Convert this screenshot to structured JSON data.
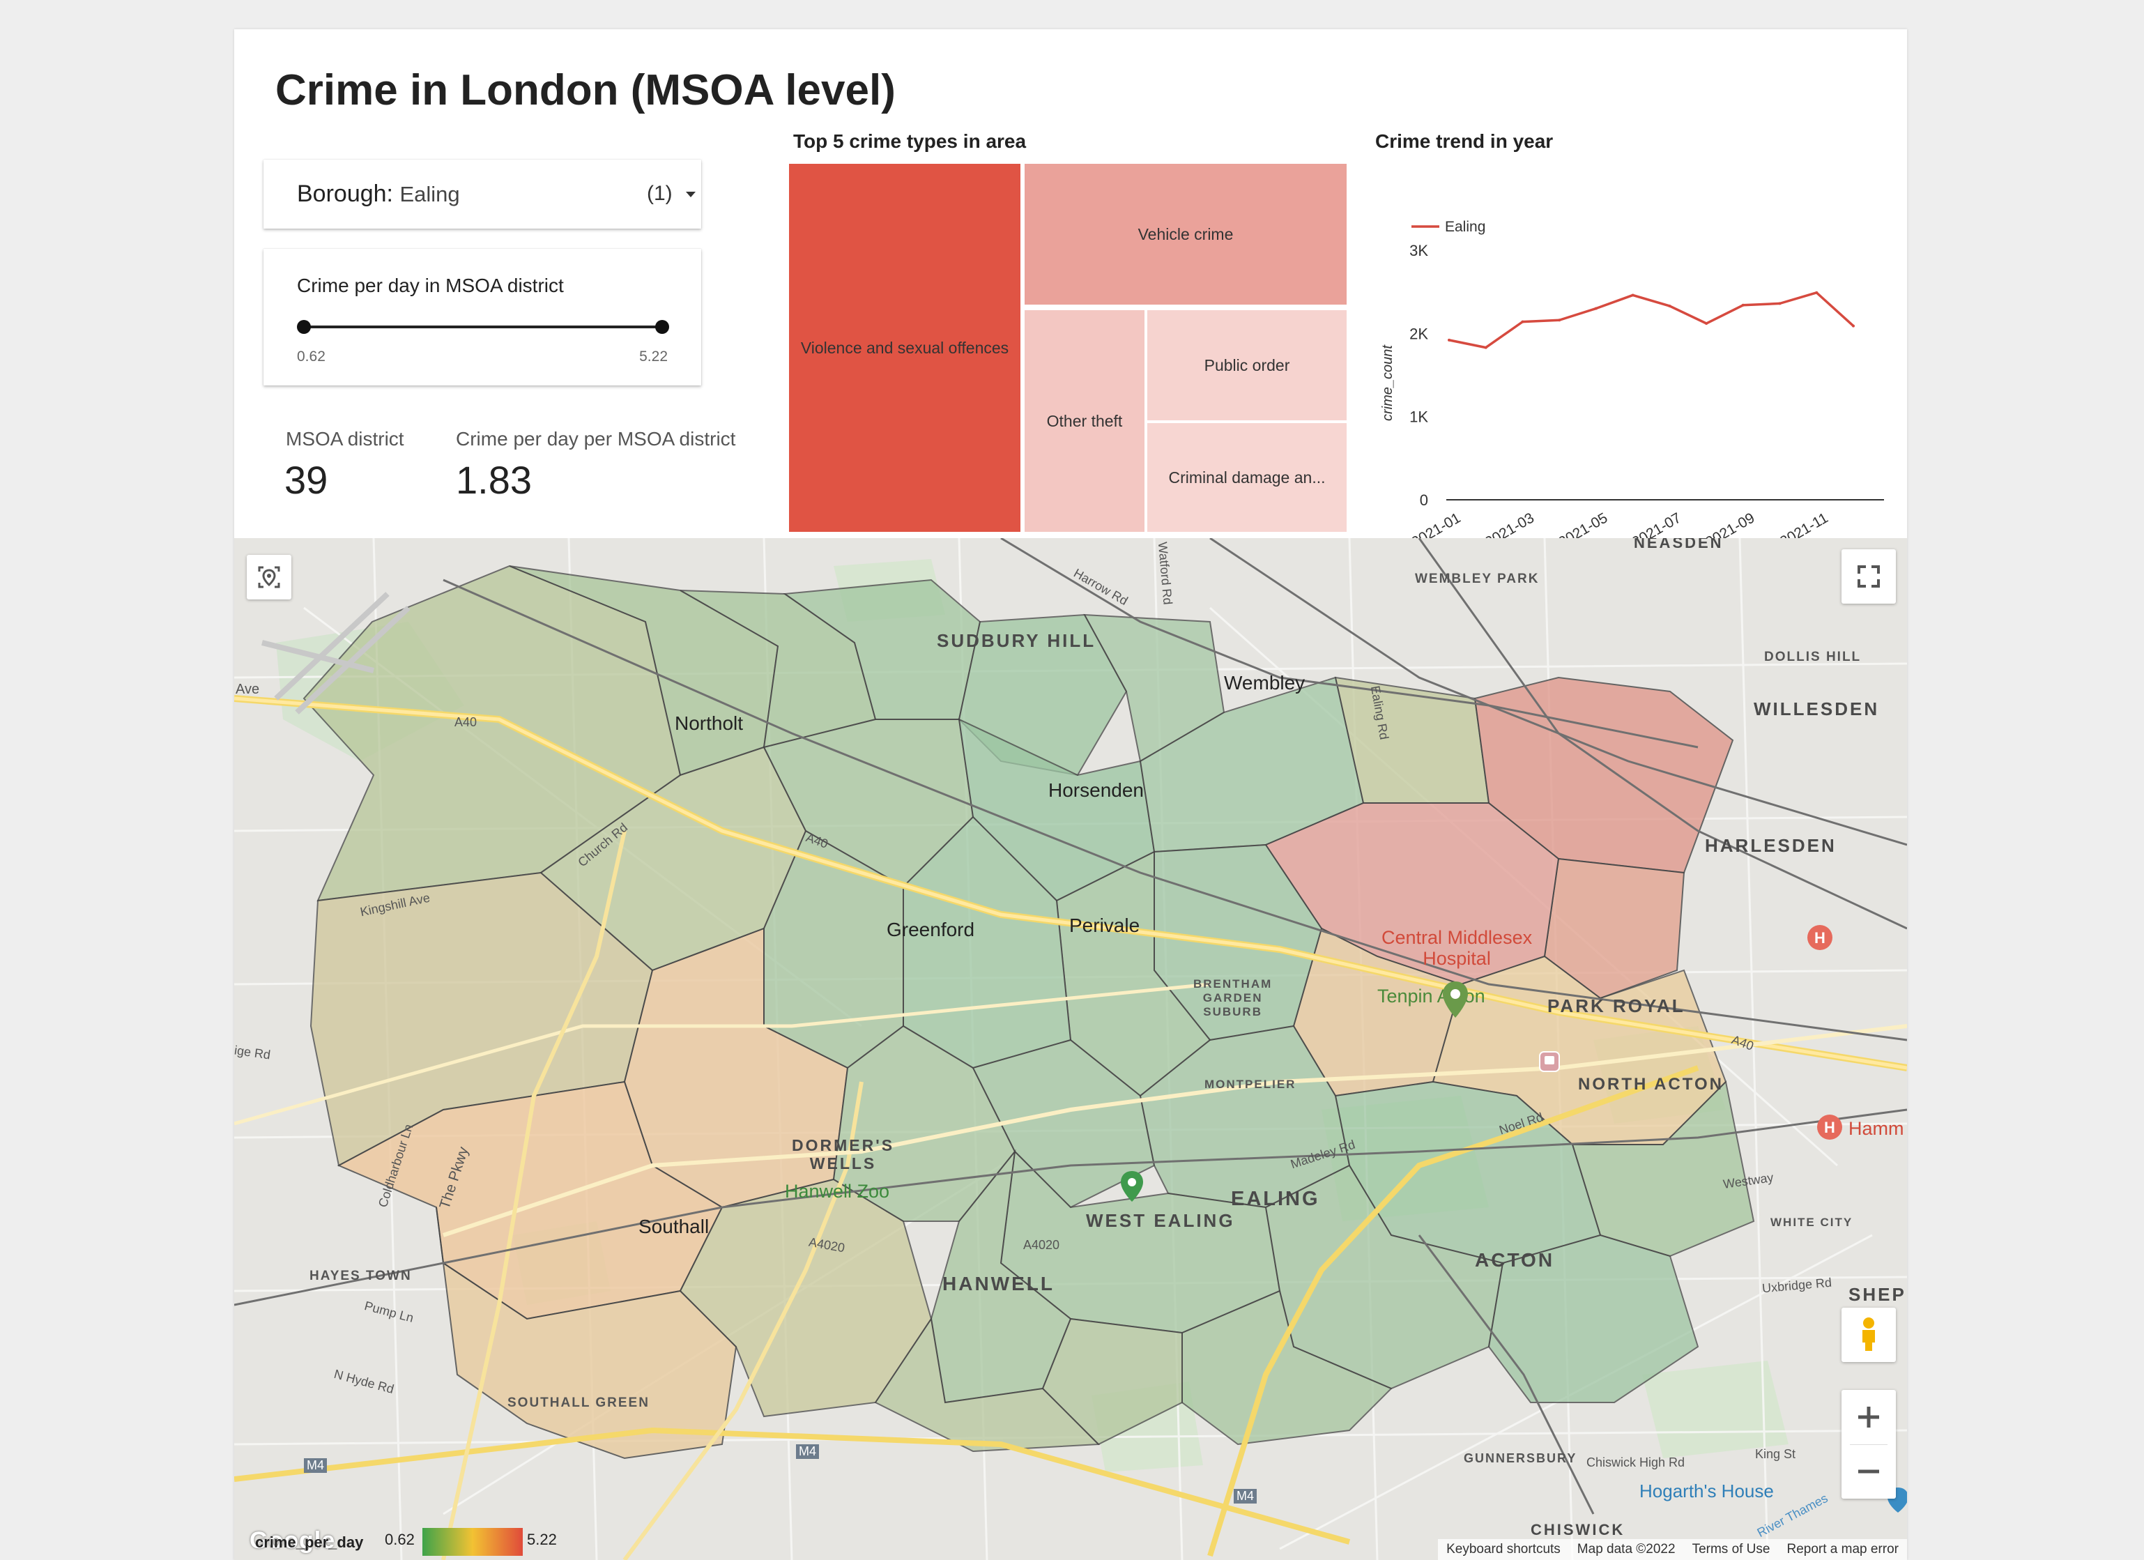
{
  "title": "Crime in London (MSOA level)",
  "borough_filter": {
    "label": "Borough",
    "value": "Ealing",
    "count": "(1)"
  },
  "slider": {
    "title": "Crime per day in MSOA district",
    "min": "0.62",
    "max": "5.22"
  },
  "kpis": [
    {
      "label": "MSOA district",
      "value": "39"
    },
    {
      "label": "Crime per day per MSOA district",
      "value": "1.83"
    }
  ],
  "treemap": {
    "title": "Top 5 crime types in area",
    "cells": [
      {
        "label": "Violence and sexual offences",
        "color": "#e05444"
      },
      {
        "label": "Vehicle crime",
        "color": "#eaa29a"
      },
      {
        "label": "Other theft",
        "color": "#f3c7c2"
      },
      {
        "label": "Public order",
        "color": "#f6d3cf"
      },
      {
        "label": "Criminal damage an...",
        "color": "#f7d6d2"
      }
    ]
  },
  "chart_data": {
    "type": "line",
    "title": "Crime trend in year",
    "xlabel": "",
    "ylabel": "crime_count",
    "x": [
      "2021-01",
      "2021-02",
      "2021-03",
      "2021-04",
      "2021-05",
      "2021-06",
      "2021-07",
      "2021-08",
      "2021-09",
      "2021-10",
      "2021-11",
      "2021-12"
    ],
    "x_tick_labels": [
      "2021-01",
      "2021-03",
      "2021-05",
      "2021-07",
      "2021-09",
      "2021-11"
    ],
    "y_ticks": [
      "0",
      "1K",
      "2K",
      "3K"
    ],
    "ylim": [
      0,
      3000
    ],
    "series": [
      {
        "name": "Ealing",
        "color": "#d64a3f",
        "values": [
          1920,
          1830,
          2140,
          2160,
          2300,
          2460,
          2330,
          2120,
          2340,
          2360,
          2490,
          2090
        ]
      }
    ],
    "legend": "top-left",
    "grid": false
  },
  "map": {
    "labels": {
      "sudbury_hill": "SUDBURY HILL",
      "wembley_park": "WEMBLEY PARK",
      "neasden": "NEASDEN",
      "dollis_hill": "DOLLIS HILL",
      "willesden": "WILLESDEN",
      "harlesden": "HARLESDEN",
      "wembley": "Wembley",
      "northolt": "Northolt",
      "horsenden": "Horsenden",
      "greenford": "Greenford",
      "perivale": "Perivale",
      "brentham": "BRENTHAM\nGARDEN\nSUBURB",
      "park_royal": "PARK ROYAL",
      "north_acton": "NORTH ACTON",
      "montpelier": "MONTPELIER",
      "dormers_wells": "DORMER'S\nWELLS",
      "hanwell_zoo": "Hanwell Zoo",
      "southall": "Southall",
      "ealing": "EALING",
      "west_ealing": "WEST EALING",
      "hanwell": "HANWELL",
      "acton": "ACTON",
      "hayes_town": "HAYES TOWN",
      "southall_green": "SOUTHALL GREEN",
      "white_city": "WHITE CITY",
      "shep": "SHEP",
      "gunnersbury": "GUNNERSBURY",
      "chiswick": "CHISWICK",
      "hogarths_house": "Hogarth's House",
      "central_middlesex": "Central Middlesex\nHospital",
      "tenpin_acton": "Tenpin Acton",
      "hamm": "Hamm",
      "a40": "A40",
      "a40b": "A40",
      "a40c": "A40",
      "a4020": "A4020",
      "a4020b": "A4020",
      "westway": "Westway",
      "m4": "M4",
      "m4b": "M4",
      "m4c": "M4",
      "church_rd": "Church Rd",
      "harrow_rd": "Harrow Rd",
      "watford_rd": "Watford Rd",
      "ealing_rd": "Ealing Rd",
      "kingshill_ave": "Kingshill Ave",
      "the_pkwy": "The Pkwy",
      "coldharbour_ln": "Coldharbour Ln",
      "pump_ln": "Pump Ln",
      "n_hyde_rd": "N Hyde Rd",
      "chiswick_high_rd": "Chiswick High Rd",
      "king_st": "King St",
      "river_thames": "River Thames",
      "uxbridge_rd": "Uxbridge Rd",
      "noel_rd": "Noel Rd",
      "madeley_rd": "Madeley Rd",
      "ave": "Ave",
      "ige_rd": "ige Rd"
    },
    "logo": "Google",
    "footer": {
      "shortcuts": "Keyboard shortcuts",
      "data": "Map data ©2022",
      "terms": "Terms of Use",
      "report": "Report a map error"
    }
  },
  "legend": {
    "field": "crime_per_day",
    "min": "0.62",
    "max": "5.22",
    "colors": [
      "#3ea34a",
      "#f2c233",
      "#e04b3a"
    ]
  }
}
